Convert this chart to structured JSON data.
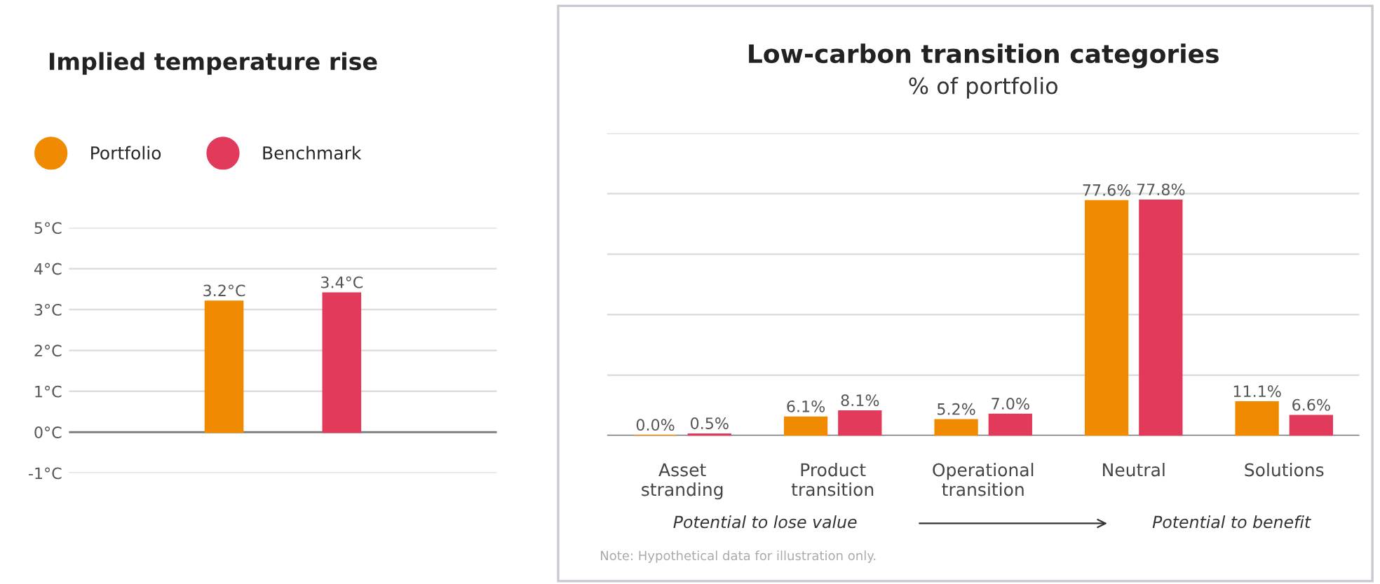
{
  "chart_data": [
    {
      "type": "bar",
      "title": "Implied temperature rise",
      "categories": [
        null
      ],
      "series": [
        {
          "name": "Portfolio",
          "color": "#f08a00",
          "values": [
            3.2
          ],
          "value_labels": [
            "3.2°C"
          ]
        },
        {
          "name": "Benchmark",
          "color": "#e23a5b",
          "values": [
            3.4
          ],
          "value_labels": [
            "3.4°C"
          ]
        }
      ],
      "ylim": [
        -1,
        5
      ],
      "yticks": [
        {
          "value": -1,
          "label": "-1°C"
        },
        {
          "value": 0,
          "label": "0°C"
        },
        {
          "value": 1,
          "label": "1°C"
        },
        {
          "value": 2,
          "label": "2°C"
        },
        {
          "value": 3,
          "label": "3°C"
        },
        {
          "value": 4,
          "label": "4°C"
        },
        {
          "value": 5,
          "label": "5°C"
        }
      ],
      "grid": "y",
      "legend": "top left",
      "tick_labels": "y"
    },
    {
      "type": "bar",
      "title": "Low-carbon transition categories",
      "subtitle": "% of portfolio",
      "categories": [
        "Asset\nstranding",
        "Product\ntransition",
        "Operational\ntransition",
        "Neutral",
        "Solutions"
      ],
      "series": [
        {
          "color": "#f08a00",
          "values": [
            0.0,
            6.1,
            5.2,
            77.6,
            11.1
          ],
          "value_labels": [
            "0.0%",
            "6.1%",
            "5.2%",
            "77.6%",
            "11.1%"
          ]
        },
        {
          "color": "#e23a5b",
          "values": [
            0.5,
            8.1,
            7.0,
            77.8,
            6.6
          ],
          "value_labels": [
            "0.5%",
            "8.1%",
            "7.0%",
            "77.8%",
            "6.6%"
          ]
        }
      ],
      "ylim": [
        0,
        100
      ],
      "yticks": [
        {
          "value": 0,
          "label": null
        },
        {
          "value": 20,
          "label": null
        },
        {
          "value": 40,
          "label": null
        },
        {
          "value": 60,
          "label": null
        },
        {
          "value": 80,
          "label": null
        },
        {
          "value": 100,
          "label": null
        }
      ],
      "grid": "y",
      "tick_labels": "x",
      "annotations": [
        "Potential to lose value",
        "Potential to benefit",
        "Note: Hypothetical data for illustration only."
      ]
    }
  ]
}
